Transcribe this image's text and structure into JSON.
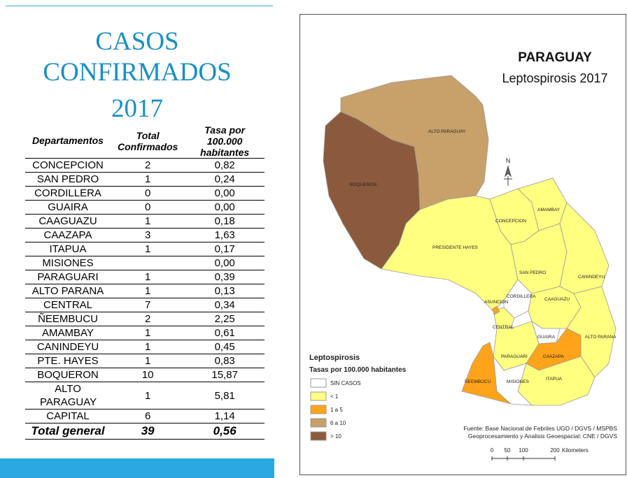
{
  "title": {
    "line1": "CASOS",
    "line2": "CONFIRMADOS",
    "year": "2017"
  },
  "table": {
    "headers": [
      "Departamentos",
      "Total Confirmados",
      "Tasa por 100.000 habitantes"
    ],
    "rows": [
      {
        "name": "CONCEPCION",
        "total": 2,
        "rate": "0,82"
      },
      {
        "name": "SAN PEDRO",
        "total": 1,
        "rate": "0,24"
      },
      {
        "name": "CORDILLERA",
        "total": 0,
        "rate": "0,00"
      },
      {
        "name": "GUAIRA",
        "total": 0,
        "rate": "0,00"
      },
      {
        "name": "CAAGUAZU",
        "total": 1,
        "rate": "0,18"
      },
      {
        "name": "CAAZAPA",
        "total": 3,
        "rate": "1,63"
      },
      {
        "name": "ITAPUA",
        "total": 1,
        "rate": "0,17"
      },
      {
        "name": "MISIONES",
        "rate": "0,00"
      },
      {
        "name": "PARAGUARI",
        "total": 1,
        "rate": "0,39"
      },
      {
        "name": "ALTO PARANA",
        "total": 1,
        "rate": "0,13"
      },
      {
        "name": "CENTRAL",
        "total": 7,
        "rate": "0,34"
      },
      {
        "name": "ÑEEMBUCU",
        "total": 2,
        "rate": "2,25"
      },
      {
        "name": "AMAMBAY",
        "total": 1,
        "rate": "0,61"
      },
      {
        "name": "CANINDEYU",
        "total": 1,
        "rate": "0,45"
      },
      {
        "name": "PTE. HAYES",
        "total": 1,
        "rate": "0,83"
      },
      {
        "name": "BOQUERON",
        "total": 10,
        "rate": "15,87"
      },
      {
        "name": "ALTO PARAGUAY",
        "total": 1,
        "rate": "5,81"
      },
      {
        "name": "CAPITAL",
        "total": 6,
        "rate": "1,14"
      }
    ],
    "footer": {
      "name": "Total general",
      "total": 39,
      "rate": "0,56"
    }
  },
  "map": {
    "title": "PARAGUAY",
    "subtitle": "Leptospirosis 2017",
    "north": "N",
    "regions": [
      "ALTO PARAGUAY",
      "BOQUERON",
      "PRESIDENTE HAYES",
      "CONCEPCION",
      "AMAMBAY",
      "SAN PEDRO",
      "CANINDEYU",
      "CORDILLERA",
      "ASUNCION",
      "CENTRAL",
      "CAAGUAZU",
      "GUAIRA",
      "ALTO PARANA",
      "CAAZAPA",
      "PARAGUARI",
      "ÑEEMBUCU",
      "MISIONES",
      "ITAPUA"
    ],
    "legend": {
      "title": "Leptospirosis",
      "subtitle": "Tasas por 100.000 habitantes",
      "items": [
        "SIN CASOS",
        "< 1",
        "1 a 5",
        "6 a 10",
        "> 10"
      ]
    },
    "source": [
      "Fuente: Base Nacional de Febriles UGD / DGVS / MSPBS",
      "Geoprocesamiento y Analisis Geoespacial: CNE / DGVS"
    ],
    "scale": {
      "ticks": [
        0,
        50,
        100,
        200
      ],
      "unit": "Kilometers"
    }
  }
}
